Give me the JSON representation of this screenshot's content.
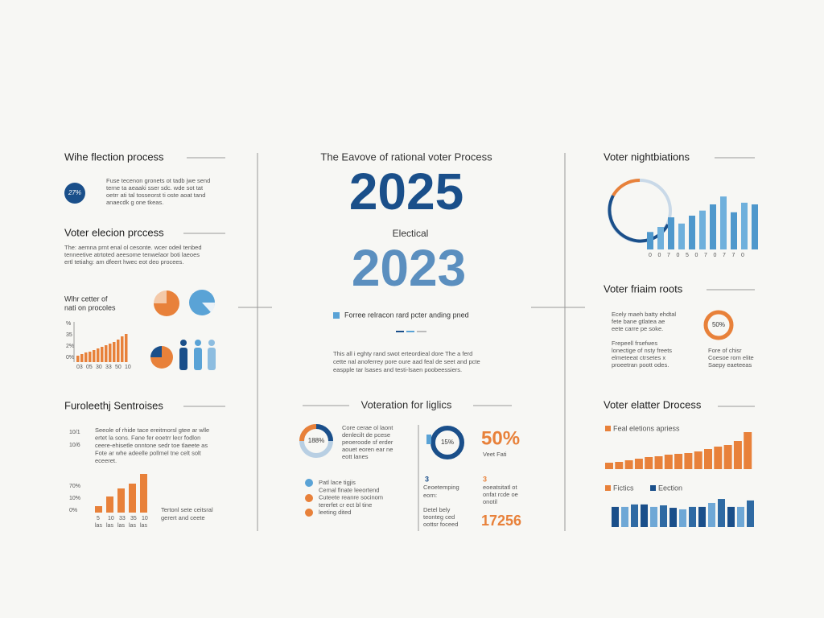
{
  "left": {
    "s1": {
      "title": "Wihe flection process",
      "badge": "27%",
      "text": [
        "Fuse tecenon gronets ot tadb jwe send",
        "terne ta aeaaki sser sdc. wde sot tat",
        "oetrr ati tal tosseorst ti oste aoat tand",
        "anaecdk g one tkeas."
      ]
    },
    "s2": {
      "title": "Voter elecion prccess",
      "text": [
        "The: aemna prnt enal ol cesonte. wcer odeil tenbed",
        "tenneetive atrtoted aeesome tenwelaor boti laeoes",
        "ertl tetiahg: am dfeert hwec eot deo procees."
      ]
    },
    "s3": {
      "title": [
        "Wlhr cetter of",
        "nati on procoles"
      ],
      "yticks": [
        "%",
        "35",
        "2%",
        "0%"
      ],
      "categories": [
        "03",
        "05",
        "30",
        "33",
        "50",
        "10"
      ],
      "ylim": [
        0,
        100
      ],
      "values": [
        16,
        20,
        24,
        26,
        30,
        34,
        38,
        42,
        46,
        50,
        56,
        64,
        70
      ]
    },
    "s4": {
      "title": "Furoleethj Sentroises",
      "tags": [
        "10/1",
        "10/6"
      ],
      "text": [
        "Seeole of rhide tace ereitmorsl gtee ar wlle",
        "ertet la sons. Fane fer eoetrr lecr fodlon",
        "ceere-ehisetle onntone sedr toe tlaeete as",
        "Fote ar whe adeelle pollmel tne celt solt",
        "eceeret."
      ],
      "yticks": [
        "70%",
        "10%",
        "0%"
      ],
      "categories": [
        "5",
        "10",
        "33",
        "35",
        "10"
      ],
      "categories2": [
        "las",
        "las",
        "las",
        "las",
        "las"
      ],
      "ylim": [
        0,
        100
      ],
      "values": [
        16,
        40,
        60,
        72,
        96
      ],
      "caption": [
        "Tertonl sete ceitsral",
        "gerert and ceete"
      ]
    }
  },
  "center": {
    "title": "The Eavove of rational voter Process",
    "big1": "2025",
    "sub": "Electical",
    "big2": "2023",
    "legend": "Forree relracon rard pcter anding pned",
    "text": [
      "This all i eghty rand swot erteordieal dore The a ferd",
      "cette nal anoferrey pore oure aad feal de seet and pcte",
      "easpple tar lsases and testi-lsaen poobeessiers."
    ],
    "s2": {
      "title": "Voteration for liglics",
      "donut1": "188%",
      "d1text": [
        "Core cerae ol laont",
        "denlecilt de pcese",
        "peoeroode sf erder",
        "aouet eoren ear ne",
        "eott lanes"
      ],
      "donut2": "15%",
      "big": "50%",
      "bigsub": "Veet Fati",
      "list": [
        "Patl lace tigjis",
        "Cemal finate leeortend",
        "Cuteete reanre socinom",
        "tererfet cr ect bl tine",
        "leeting dited"
      ],
      "n1": "3",
      "n1text": [
        "Ceoetemping",
        "eorn:"
      ],
      "n2": "3",
      "n2text": [
        "eoeatsitatl ot",
        "onfat rcde oe",
        "onotil"
      ],
      "n3text": [
        "Detel bely",
        "teonteg ced",
        "oottsr foceed"
      ],
      "big2": "17256"
    }
  },
  "right": {
    "s1": {
      "title": "Voter nightbiations",
      "categories": [
        "0",
        "0",
        "7",
        "0",
        "5",
        "0",
        "7",
        "0",
        "7",
        "7",
        "0"
      ],
      "ylim": [
        0,
        100
      ],
      "values": [
        31,
        40,
        57,
        46,
        60,
        69,
        80,
        94,
        66,
        83,
        80
      ]
    },
    "s2": {
      "title": "Voter friaim roots",
      "list1": [
        "Ecely maeh batty ehdtal",
        "fete bane gtlatea ae",
        "eete carre pe soke."
      ],
      "list2": [
        "Frepeell frsefwes",
        "lonectige of nsty freets",
        "elmeteeat ctrsetes x",
        "proeetran poott odes."
      ],
      "ring": "50%",
      "list3": [
        "Fore of chisr",
        "Coesoe rom elite",
        "Saepy eaeteeas"
      ]
    },
    "s3": {
      "title": "Voter elatter Drocess",
      "legend": "Feal eletions apriess",
      "ylim": [
        0,
        100
      ],
      "values": [
        16,
        18,
        22,
        26,
        30,
        32,
        36,
        38,
        40,
        44,
        50,
        56,
        60,
        70,
        92
      ],
      "legend2": [
        "Fictics",
        "Eection"
      ],
      "values2": [
        66,
        66,
        74,
        74,
        66,
        71,
        63,
        58,
        66,
        66,
        79,
        92,
        66,
        66,
        87
      ]
    }
  }
}
